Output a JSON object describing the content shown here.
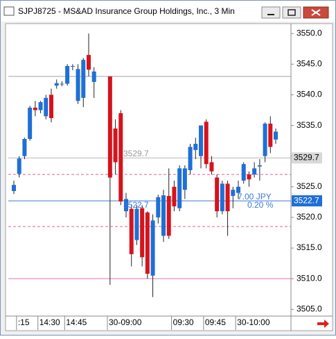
{
  "window_title": "SJPJ8725 - MS&AD Insurance Group Holdings, Inc., 3 Min",
  "chart_data": {
    "type": "candlestick",
    "categories": [
      null,
      ":15",
      null,
      null,
      null,
      "14:30",
      null,
      null,
      null,
      null,
      "14:45",
      null,
      null,
      null,
      null,
      null,
      null,
      null,
      "30-09:00",
      null,
      null,
      null,
      null,
      null,
      null,
      null,
      null,
      null,
      null,
      null,
      "09:30",
      null,
      null,
      null,
      null,
      null,
      "09:45",
      null,
      null,
      null,
      null,
      null,
      "30-10:00",
      null,
      null,
      null,
      null,
      null,
      null,
      null
    ],
    "open": [
      3524.3,
      3527.1,
      3530,
      3532.8,
      3537.9,
      3537.5,
      3536.5,
      3540,
      3541.5,
      3541.8,
      3541.8,
      3544.6,
      3539,
      3539.5,
      3546.5,
      3542.1,
      null,
      null,
      3543,
      3534.5,
      3537,
      3521,
      3521.4,
      3516.3,
      3521.5,
      3520.8,
      3510.5,
      3520,
      3517,
      3523.5,
      3525,
      3521.5,
      3524.5,
      3527.7,
      3531,
      3530,
      3535.6,
      3529,
      3526.5,
      3521,
      3525.5,
      3523.5,
      3524,
      3526,
      3527,
      3527,
      3528.3,
      3530,
      3535.3,
      3532.7
    ],
    "high": [
      3526,
      3530,
      3533,
      3538.2,
      3539,
      3539,
      3540,
      3541,
      3542.5,
      3542.2,
      3545,
      3545,
      3545,
      3546,
      3550,
      3544.5,
      null,
      null,
      3543,
      3536,
      3537.5,
      3524,
      3522,
      3522,
      3522,
      3521,
      3520.5,
      3523.7,
      3524.5,
      3528,
      3526,
      3528.5,
      3528.5,
      3532,
      3533,
      3535,
      3536,
      3530,
      3527,
      3526,
      3526,
      3525,
      3526,
      3529,
      3527.5,
      3529,
      3529.5,
      3535.5,
      3536.5,
      3534.5
    ],
    "low": [
      3523.8,
      3526.5,
      3529.5,
      3532.5,
      3536.5,
      3537,
      3536,
      3535.5,
      3541,
      3541.4,
      3541.5,
      3544,
      3538.5,
      3538,
      3543,
      3539.5,
      null,
      null,
      3509,
      3527,
      3522,
      3520,
      3512,
      3515.5,
      3512,
      3510,
      3507,
      3519,
      3516,
      3516.5,
      3521,
      3521,
      3523,
      3527,
      3529.5,
      3528,
      3528,
      3527,
      3520,
      3520.5,
      3517,
      3521.5,
      3523,
      3525.5,
      3525,
      3526.5,
      3526,
      3529,
      3530.5,
      3532
    ],
    "close": [
      3525.3,
      3529.6,
      3532.8,
      3537.9,
      3537.5,
      3538.8,
      3539.5,
      3536.2,
      3541.9,
      3541.8,
      3544.7,
      3544.7,
      3544.2,
      3545.7,
      3544.1,
      3543.8,
      null,
      null,
      3526.5,
      3529,
      3522.6,
      3523,
      3514,
      3521.4,
      3513.5,
      3510.8,
      3519.5,
      3523.3,
      3523.6,
      3517,
      3521.8,
      3528,
      3528,
      3531.5,
      3532,
      3535,
      3528.7,
      3527.5,
      3521,
      3525.5,
      3521,
      3524.5,
      3525,
      3528.7,
      3526.2,
      3528,
      3528.5,
      3535.3,
      3531.5,
      3534
    ],
    "up_color": "#1f6fd6",
    "down_color": "#d5141c",
    "ylim": [
      3503.9,
      3551.5
    ],
    "yticks": [
      {
        "value": 3505,
        "label": "3505.0"
      },
      {
        "value": 3510,
        "label": "3510.0"
      },
      {
        "value": 3515,
        "label": "3515.0"
      },
      {
        "value": 3520,
        "label": "3520.0"
      },
      {
        "value": 3525,
        "label": "3525.0"
      },
      {
        "value": 3530,
        "label": "3530.0"
      },
      {
        "value": 3535,
        "label": "3535.0"
      },
      {
        "value": 3540,
        "label": "3540.0"
      },
      {
        "value": 3545,
        "label": "3545.0"
      },
      {
        "value": 3550,
        "label": "3550.0"
      }
    ],
    "levels": [
      {
        "value": 3543,
        "color": "#a0a0a0",
        "dashed": false
      },
      {
        "value": 3529.7,
        "color": "#b8b8b8",
        "dashed": false
      },
      {
        "value": 3527,
        "color": "#e0609a",
        "dashed": true
      },
      {
        "value": 3522.7,
        "color": "#3a78d8",
        "dashed": false
      },
      {
        "value": 3518.5,
        "color": "#e0609a",
        "dashed": true
      },
      {
        "value": 3510,
        "color": "#e070b8",
        "dashed": false
      }
    ],
    "price_tags": [
      {
        "value": 3529.7,
        "label": "3529.7",
        "color": "#d8d8d8",
        "text_color": "#000000"
      },
      {
        "value": 3522.7,
        "label": "3522.7",
        "color": "#1f6fd6",
        "text_color": "#ffffff"
      }
    ],
    "annotations": [
      "3529.7",
      "3522.7",
      "7.00 JPY",
      "0.20 %"
    ]
  }
}
